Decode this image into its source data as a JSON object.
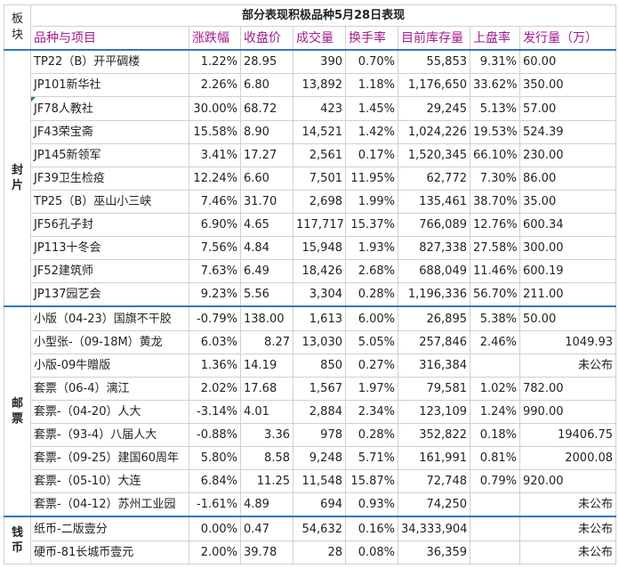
{
  "table": {
    "title": "部分表现积极品种5月28日表现",
    "corner": "板块",
    "headers": {
      "name": "品种与项目",
      "change": "涨跌幅",
      "close": "收盘价",
      "volume": "成交量",
      "turnover": "换手率",
      "stock": "目前库存量",
      "listing_rate": "上盘率",
      "issue": "发行量（万）"
    },
    "sections": {
      "s1": "封片",
      "s2": "邮票",
      "s3": "钱币"
    },
    "rows": [
      {
        "name": "TP22（B）开平碉楼",
        "change": "1.22%",
        "close": "28.95",
        "volume": "390",
        "turnover": "0.70%",
        "stock": "55,853",
        "listing_rate": "9.31%",
        "issue": "60.00"
      },
      {
        "name": "JP101新华社",
        "change": "2.26%",
        "close": "6.80",
        "volume": "13,892",
        "turnover": "1.18%",
        "stock": "1,176,650",
        "listing_rate": "33.62%",
        "issue": "350.00"
      },
      {
        "name": "JF78人教社",
        "change": "30.00%",
        "close": "68.72",
        "volume": "423",
        "turnover": "1.45%",
        "stock": "29,245",
        "listing_rate": "5.13%",
        "issue": "57.00"
      },
      {
        "name": "JF43荣宝斋",
        "change": "15.58%",
        "close": "8.90",
        "volume": "14,521",
        "turnover": "1.42%",
        "stock": "1,024,226",
        "listing_rate": "19.53%",
        "issue": "524.39"
      },
      {
        "name": "JP145新领军",
        "change": "3.41%",
        "close": "17.27",
        "volume": "2,561",
        "turnover": "0.17%",
        "stock": "1,520,345",
        "listing_rate": "66.10%",
        "issue": "230.00"
      },
      {
        "name": "JF39卫生检疫",
        "change": "12.24%",
        "close": "6.60",
        "volume": "7,501",
        "turnover": "11.95%",
        "stock": "62,772",
        "listing_rate": "7.30%",
        "issue": "86.00"
      },
      {
        "name": "TP25（B）巫山小三峡",
        "change": "7.46%",
        "close": "31.70",
        "volume": "2,698",
        "turnover": "1.99%",
        "stock": "135,461",
        "listing_rate": "38.70%",
        "issue": "35.00"
      },
      {
        "name": "JF56孔子封",
        "change": "6.90%",
        "close": "4.65",
        "volume": "117,717",
        "turnover": "15.37%",
        "stock": "766,089",
        "listing_rate": "12.76%",
        "issue": "600.34"
      },
      {
        "name": "JP113十冬会",
        "change": "7.56%",
        "close": "4.84",
        "volume": "15,948",
        "turnover": "1.93%",
        "stock": "827,338",
        "listing_rate": "27.58%",
        "issue": "300.00"
      },
      {
        "name": "JF52建筑师",
        "change": "7.63%",
        "close": "6.49",
        "volume": "18,426",
        "turnover": "2.68%",
        "stock": "688,049",
        "listing_rate": "11.46%",
        "issue": "600.19"
      },
      {
        "name": "JP137园艺会",
        "change": "9.23%",
        "close": "5.56",
        "volume": "3,304",
        "turnover": "0.28%",
        "stock": "1,196,336",
        "listing_rate": "56.70%",
        "issue": "211.00"
      },
      {
        "name": "小版（04-23）国旗不干胶",
        "change": "-0.79%",
        "close": "138.00",
        "volume": "1,613",
        "turnover": "6.00%",
        "stock": "26,895",
        "listing_rate": "5.38%",
        "issue": "50.00"
      },
      {
        "name": "小型张-（09-18M）黄龙",
        "change": "6.03%",
        "close": "8.27",
        "volume": "13,030",
        "turnover": "5.05%",
        "stock": "257,846",
        "listing_rate": "2.46%",
        "issue": "1049.93"
      },
      {
        "name": "小版-09牛贈版",
        "change": "1.36%",
        "close": "14.19",
        "volume": "850",
        "turnover": "0.27%",
        "stock": "316,384",
        "listing_rate": "",
        "issue": "未公布"
      },
      {
        "name": "套票（06-4）漓江",
        "change": "2.02%",
        "close": "17.68",
        "volume": "1,567",
        "turnover": "1.97%",
        "stock": "79,581",
        "listing_rate": "1.02%",
        "issue": "782.00"
      },
      {
        "name": "套票-（04-20）人大",
        "change": "-3.14%",
        "close": "4.01",
        "volume": "2,884",
        "turnover": "2.34%",
        "stock": "123,109",
        "listing_rate": "1.24%",
        "issue": "990.00"
      },
      {
        "name": "套票-（93-4）八届人大",
        "change": "-0.88%",
        "close": "3.36",
        "volume": "978",
        "turnover": "0.28%",
        "stock": "352,822",
        "listing_rate": "0.18%",
        "issue": "19406.75"
      },
      {
        "name": "套票-（09-25）建国60周年",
        "change": "5.80%",
        "close": "8.58",
        "volume": "9,248",
        "turnover": "5.71%",
        "stock": "161,991",
        "listing_rate": "0.81%",
        "issue": "2000.08"
      },
      {
        "name": "套票-（05-10）大连",
        "change": "6.84%",
        "close": "11.25",
        "volume": "11,548",
        "turnover": "15.87%",
        "stock": "72,748",
        "listing_rate": "0.79%",
        "issue": "920.00"
      },
      {
        "name": "套票-（04-12）苏州工业园",
        "change": "-1.61%",
        "close": "4.89",
        "volume": "694",
        "turnover": "0.93%",
        "stock": "74,250",
        "listing_rate": "",
        "issue": "未公布"
      },
      {
        "name": "纸币-二版壹分",
        "change": "0.00%",
        "close": "0.47",
        "volume": "54,632",
        "turnover": "0.16%",
        "stock": "34,333,904",
        "listing_rate": "",
        "issue": "未公布"
      },
      {
        "name": "硬币-81长城币壹元",
        "change": "2.00%",
        "close": "39.78",
        "volume": "28",
        "turnover": "0.08%",
        "stock": "36,359",
        "listing_rate": "",
        "issue": "未公布"
      }
    ]
  },
  "colors": {
    "title": "#2f6fc0",
    "header": "#a01d8c",
    "sector": "#1a67b8",
    "positive": "#e02020",
    "negative": "#19a031",
    "section_rule": "#2f76c4",
    "grid": "#d0d0d0"
  }
}
